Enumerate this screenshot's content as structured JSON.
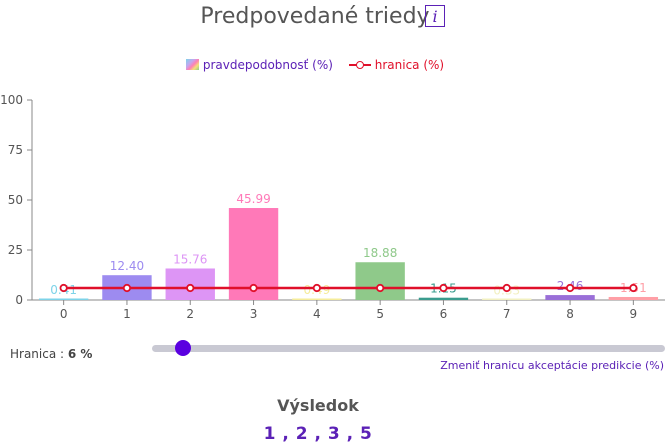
{
  "header": {
    "title": "Predpovedané triedy",
    "info_icon": "info-icon",
    "info_glyph": "i"
  },
  "legend": {
    "probability_label": "pravdepodobnosť (%)",
    "limit_label": "hranica (%)"
  },
  "colors": {
    "accent": "#5b21b6",
    "limit_line": "#e0102a",
    "slider_thumb": "#5a00e0",
    "bars": [
      "#7dd3e8",
      "#9d8bf0",
      "#dd95f5",
      "#ff79b8",
      "#f5ec9a",
      "#8fc98a",
      "#3a9c8e",
      "#f2f0c0",
      "#9a6fd8",
      "#ff9fa6"
    ]
  },
  "chart_data": {
    "type": "bar",
    "categories": [
      "0",
      "1",
      "2",
      "3",
      "4",
      "5",
      "6",
      "7",
      "8",
      "9"
    ],
    "series": [
      {
        "name": "pravdepodobnosť (%)",
        "values": [
          0.41,
          12.4,
          15.76,
          45.99,
          0.49,
          18.88,
          1.15,
          0.33,
          2.46,
          1.51
        ]
      },
      {
        "name": "hranica (%)",
        "type": "line",
        "values": [
          6,
          6,
          6,
          6,
          6,
          6,
          6,
          6,
          6,
          6
        ]
      }
    ],
    "data_labels": [
      "0.41",
      "12.40",
      "15.76",
      "45.99",
      "0.49",
      "18.88",
      "1.15",
      "0.33",
      "2.46",
      "1.51"
    ],
    "ylim": [
      0,
      100
    ],
    "yticks": [
      0,
      25,
      50,
      75,
      100
    ],
    "grid": false,
    "legend": "top-center"
  },
  "threshold": {
    "label": "Hranica : ",
    "value_text": "6 %",
    "value": 6,
    "min": 0,
    "max": 100,
    "caption": "Zmeniť hranicu akceptácie predikcie (%)"
  },
  "result": {
    "title": "Výsledok",
    "value": "1 , 2 , 3 , 5"
  }
}
